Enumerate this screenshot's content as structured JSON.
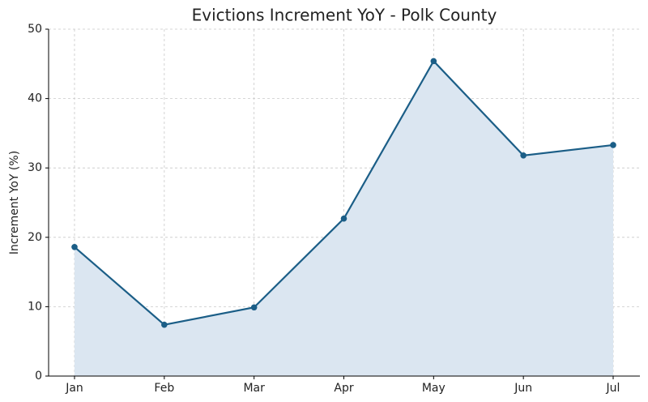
{
  "chart_data": {
    "type": "line",
    "title": "Evictions Increment YoY - Polk County",
    "y_label": "Increment YoY (%)",
    "categories": [
      "Jan",
      "Feb",
      "Mar",
      "Apr",
      "May",
      "Jun",
      "Jul"
    ],
    "values": [
      18.6,
      7.4,
      9.9,
      22.7,
      45.4,
      31.8,
      33.3
    ],
    "color": "#1b5e87",
    "area_color": "#dbe6f1",
    "ylim": [
      0,
      50
    ],
    "yticks": [
      0,
      10,
      20,
      30,
      40,
      50
    ],
    "grid": true
  }
}
